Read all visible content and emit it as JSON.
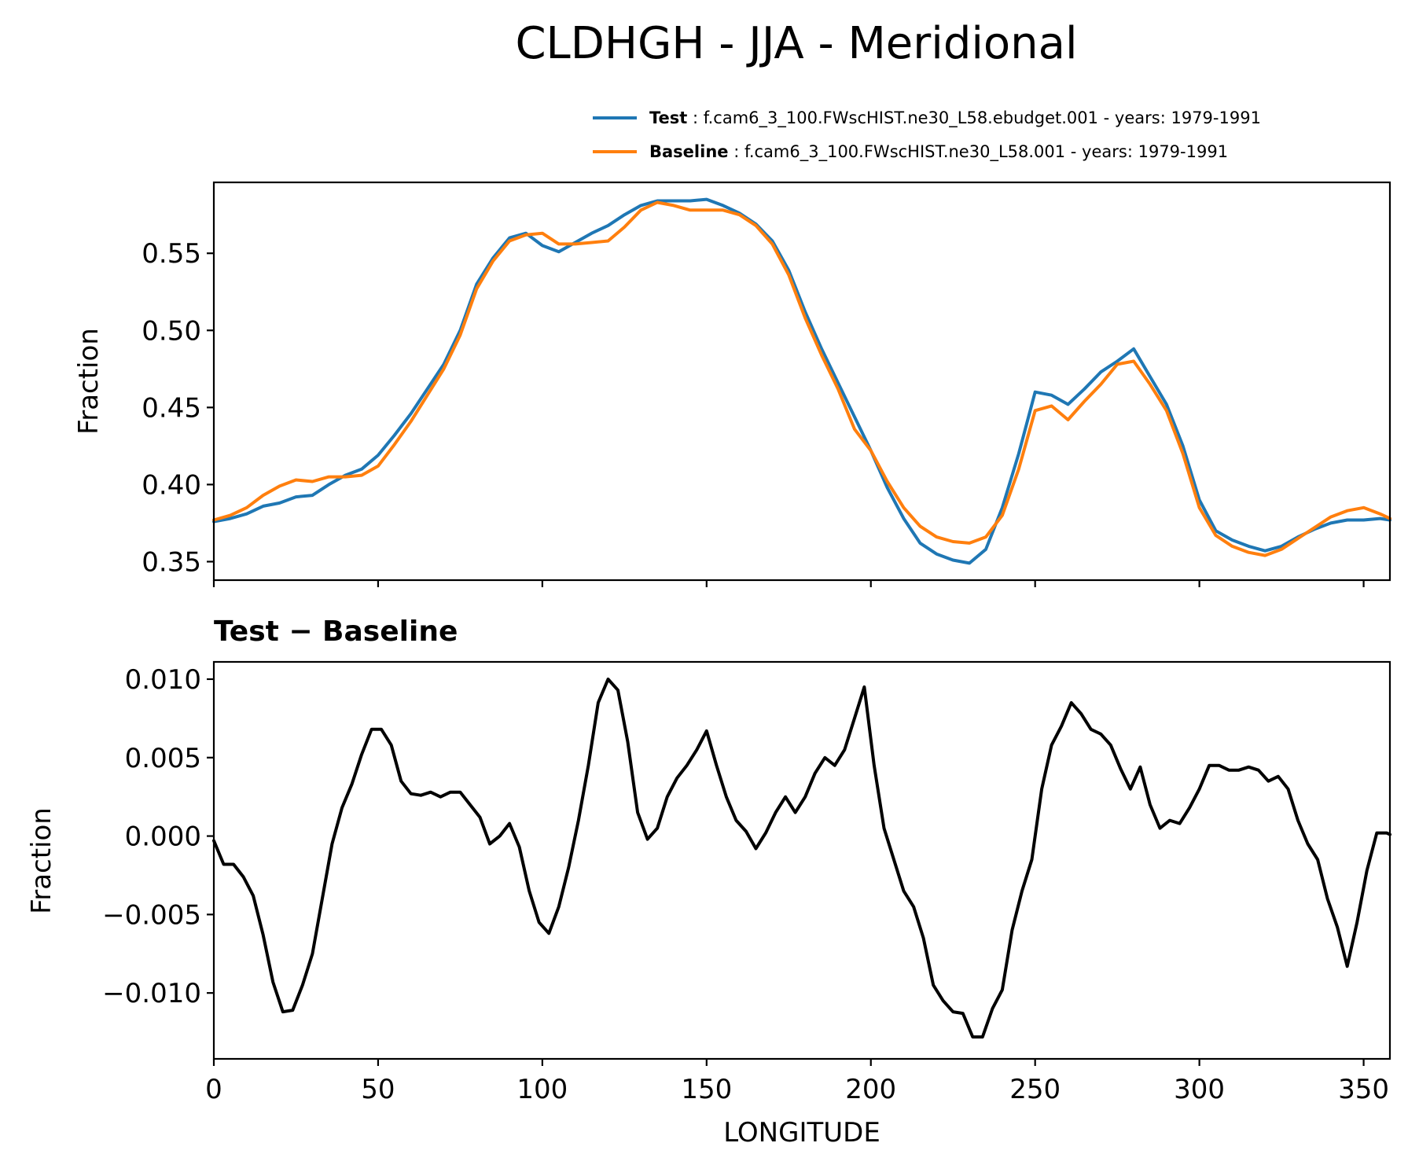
{
  "chart_data": [
    {
      "type": "line",
      "title": "CLDHGH - JJA - Meridional",
      "xlabel": "",
      "ylabel": "Fraction",
      "xlim": [
        0,
        358
      ],
      "ylim": [
        0.338,
        0.596
      ],
      "yticks": [
        0.35,
        0.4,
        0.45,
        0.5,
        0.55
      ],
      "ytick_labels": [
        "0.35",
        "0.40",
        "0.45",
        "0.50",
        "0.55"
      ],
      "xticks": [
        0,
        50,
        100,
        150,
        200,
        250,
        300,
        350
      ],
      "legend_position": "top-right",
      "series": [
        {
          "name": "Test",
          "label": "f.cam6_3_100.FWscHIST.ne30_L58.ebudget.001 - years: 1979-1991",
          "color": "#1f77b4",
          "x": [
            0,
            5,
            10,
            15,
            20,
            25,
            30,
            35,
            40,
            45,
            50,
            55,
            60,
            65,
            70,
            75,
            80,
            85,
            90,
            95,
            100,
            105,
            110,
            115,
            120,
            125,
            130,
            135,
            140,
            145,
            150,
            155,
            160,
            165,
            170,
            175,
            180,
            185,
            190,
            195,
            200,
            205,
            210,
            215,
            220,
            225,
            230,
            235,
            240,
            245,
            250,
            255,
            260,
            265,
            270,
            275,
            280,
            285,
            290,
            295,
            300,
            305,
            310,
            315,
            320,
            325,
            330,
            335,
            340,
            345,
            350,
            355,
            358
          ],
          "values": [
            0.376,
            0.378,
            0.381,
            0.386,
            0.388,
            0.392,
            0.393,
            0.4,
            0.406,
            0.41,
            0.419,
            0.432,
            0.446,
            0.462,
            0.478,
            0.5,
            0.53,
            0.547,
            0.56,
            0.563,
            0.555,
            0.551,
            0.557,
            0.563,
            0.568,
            0.575,
            0.581,
            0.584,
            0.584,
            0.584,
            0.585,
            0.581,
            0.576,
            0.569,
            0.558,
            0.539,
            0.512,
            0.488,
            0.466,
            0.444,
            0.422,
            0.398,
            0.378,
            0.362,
            0.355,
            0.351,
            0.349,
            0.358,
            0.385,
            0.42,
            0.46,
            0.458,
            0.452,
            0.462,
            0.473,
            0.48,
            0.488,
            0.47,
            0.452,
            0.425,
            0.39,
            0.37,
            0.364,
            0.36,
            0.357,
            0.36,
            0.366,
            0.371,
            0.375,
            0.377,
            0.377,
            0.378,
            0.377
          ]
        },
        {
          "name": "Baseline",
          "label": "f.cam6_3_100.FWscHIST.ne30_L58.001 - years: 1979-1991",
          "color": "#ff7f0e",
          "x": [
            0,
            5,
            10,
            15,
            20,
            25,
            30,
            35,
            40,
            45,
            50,
            55,
            60,
            65,
            70,
            75,
            80,
            85,
            90,
            95,
            100,
            105,
            110,
            115,
            120,
            125,
            130,
            135,
            140,
            145,
            150,
            155,
            160,
            165,
            170,
            175,
            180,
            185,
            190,
            195,
            200,
            205,
            210,
            215,
            220,
            225,
            230,
            235,
            240,
            245,
            250,
            255,
            260,
            265,
            270,
            275,
            280,
            285,
            290,
            295,
            300,
            305,
            310,
            315,
            320,
            325,
            330,
            335,
            340,
            345,
            350,
            355,
            358
          ],
          "values": [
            0.377,
            0.38,
            0.385,
            0.393,
            0.399,
            0.403,
            0.402,
            0.405,
            0.405,
            0.406,
            0.412,
            0.426,
            0.441,
            0.458,
            0.475,
            0.497,
            0.527,
            0.545,
            0.558,
            0.562,
            0.563,
            0.556,
            0.556,
            0.557,
            0.558,
            0.567,
            0.578,
            0.583,
            0.581,
            0.578,
            0.578,
            0.578,
            0.575,
            0.568,
            0.556,
            0.536,
            0.508,
            0.484,
            0.462,
            0.436,
            0.422,
            0.402,
            0.385,
            0.373,
            0.366,
            0.363,
            0.362,
            0.366,
            0.38,
            0.41,
            0.448,
            0.451,
            0.442,
            0.454,
            0.465,
            0.478,
            0.48,
            0.465,
            0.448,
            0.42,
            0.385,
            0.367,
            0.36,
            0.356,
            0.354,
            0.358,
            0.365,
            0.372,
            0.379,
            0.383,
            0.385,
            0.381,
            0.378
          ]
        }
      ]
    },
    {
      "type": "line",
      "title": "Test − Baseline",
      "xlabel": "LONGITUDE",
      "ylabel": "Fraction",
      "xlim": [
        0,
        358
      ],
      "ylim": [
        -0.0142,
        0.0111
      ],
      "yticks": [
        -0.01,
        -0.005,
        0.0,
        0.005,
        0.01
      ],
      "ytick_labels": [
        "−0.010",
        "−0.005",
        "0.000",
        "0.005",
        "0.010"
      ],
      "xticks": [
        0,
        50,
        100,
        150,
        200,
        250,
        300,
        350
      ],
      "xtick_labels": [
        "0",
        "50",
        "100",
        "150",
        "200",
        "250",
        "300",
        "350"
      ],
      "series": [
        {
          "name": "Test − Baseline",
          "color": "#000000",
          "x": [
            0,
            3,
            6,
            9,
            12,
            15,
            18,
            21,
            24,
            27,
            30,
            33,
            36,
            39,
            42,
            45,
            48,
            51,
            54,
            57,
            60,
            63,
            66,
            69,
            72,
            75,
            78,
            81,
            84,
            87,
            90,
            93,
            96,
            99,
            102,
            105,
            108,
            111,
            114,
            117,
            120,
            123,
            126,
            129,
            132,
            135,
            138,
            141,
            144,
            147,
            150,
            153,
            156,
            159,
            162,
            165,
            168,
            171,
            174,
            177,
            180,
            183,
            186,
            189,
            192,
            195,
            198,
            201,
            204,
            207,
            210,
            213,
            216,
            219,
            222,
            225,
            228,
            231,
            234,
            237,
            240,
            243,
            246,
            249,
            252,
            255,
            258,
            261,
            264,
            267,
            270,
            273,
            276,
            279,
            282,
            285,
            288,
            291,
            294,
            297,
            300,
            303,
            306,
            309,
            312,
            315,
            318,
            321,
            324,
            327,
            330,
            333,
            336,
            339,
            342,
            345,
            348,
            351,
            354,
            357,
            358
          ],
          "values": [
            -0.0003,
            -0.0018,
            -0.0018,
            -0.0026,
            -0.0038,
            -0.0063,
            -0.0093,
            -0.0112,
            -0.0111,
            -0.0095,
            -0.0075,
            -0.004,
            -0.0005,
            0.0018,
            0.0033,
            0.0052,
            0.0068,
            0.0068,
            0.0058,
            0.0035,
            0.0027,
            0.0026,
            0.0028,
            0.0025,
            0.0028,
            0.0028,
            0.002,
            0.0012,
            -0.0005,
            0.0,
            0.0008,
            -0.0007,
            -0.0035,
            -0.0055,
            -0.0062,
            -0.0045,
            -0.002,
            0.001,
            0.0045,
            0.0085,
            0.01,
            0.0093,
            0.006,
            0.0015,
            -0.0002,
            0.0005,
            0.0025,
            0.0037,
            0.0045,
            0.0055,
            0.0067,
            0.0045,
            0.0025,
            0.001,
            0.0003,
            -0.0008,
            0.0002,
            0.0015,
            0.0025,
            0.0015,
            0.0025,
            0.004,
            0.005,
            0.0045,
            0.0055,
            0.0075,
            0.0095,
            0.0045,
            0.0005,
            -0.0015,
            -0.0035,
            -0.0045,
            -0.0065,
            -0.0095,
            -0.0105,
            -0.0112,
            -0.0113,
            -0.0128,
            -0.0128,
            -0.011,
            -0.0098,
            -0.006,
            -0.0035,
            -0.0015,
            0.003,
            0.0058,
            0.007,
            0.0085,
            0.0078,
            0.0068,
            0.0065,
            0.0058,
            0.0043,
            0.003,
            0.0044,
            0.002,
            0.0005,
            0.001,
            0.0008,
            0.0018,
            0.003,
            0.0045,
            0.0045,
            0.0042,
            0.0042,
            0.0044,
            0.0042,
            0.0035,
            0.0038,
            0.003,
            0.001,
            -0.0005,
            -0.0015,
            -0.004,
            -0.0058,
            -0.0083,
            -0.0055,
            -0.0022,
            0.0002,
            0.0002,
            0.0001
          ]
        }
      ]
    }
  ]
}
